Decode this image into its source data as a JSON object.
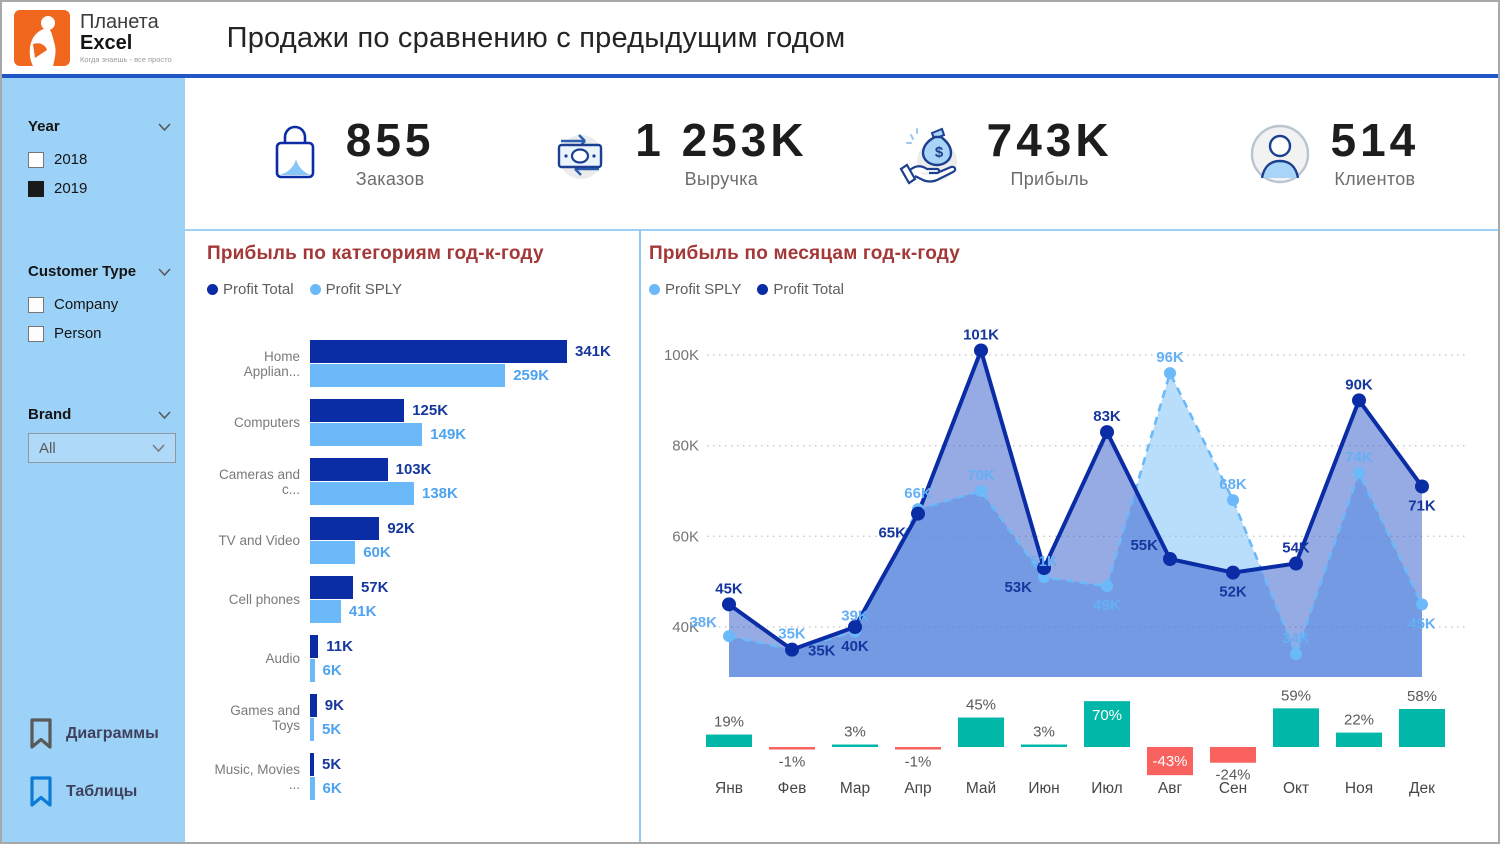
{
  "header": {
    "logo": {
      "brand_line1": "Планета",
      "brand_line2": "Excel",
      "tagline": "Когда знаешь - все просто"
    },
    "title": "Продажи по сравнению с предыдущим годом"
  },
  "sidebar": {
    "year": {
      "label": "Year",
      "options": [
        {
          "label": "2018",
          "checked": false
        },
        {
          "label": "2019",
          "checked": true
        }
      ]
    },
    "customer_type": {
      "label": "Customer Type",
      "options": [
        {
          "label": "Company",
          "checked": false
        },
        {
          "label": "Person",
          "checked": false
        }
      ]
    },
    "brand": {
      "label": "Brand",
      "selected": "All"
    },
    "nav": [
      {
        "label": "Диаграммы",
        "icon": "bookmark-icon",
        "color": "#595959"
      },
      {
        "label": "Таблицы",
        "icon": "bookmark-icon",
        "color": "#0b7bd8"
      }
    ]
  },
  "kpis": [
    {
      "value": "855",
      "label": "Заказов",
      "icon": "shopping-bag-icon"
    },
    {
      "value": "1 253K",
      "label": "Выручка",
      "icon": "money-transfer-icon"
    },
    {
      "value": "743K",
      "label": "Прибыль",
      "icon": "money-bag-icon"
    },
    {
      "value": "514",
      "label": "Клиентов",
      "icon": "customer-icon"
    }
  ],
  "colors": {
    "profit_total": "#0a2ca4",
    "profit_sply": "#6cb9f9",
    "total_fill": "#2e55c8",
    "sply_fill": "#7dc3fa",
    "positive": "#00b7a8",
    "negative": "#f9625e",
    "title_maroon": "#a43737",
    "sidebar_blue": "#9dd2f8",
    "divider_blue": "#8fc7f3",
    "header_rule": "#2156c6",
    "axis_gray": "#757575"
  },
  "chart_data": [
    {
      "type": "bar",
      "orientation": "horizontal",
      "title": "Прибыль по категориям год-к-году",
      "unit": "K",
      "legend_position": "top",
      "categories": [
        "Home Applian...",
        "Computers",
        "Cameras and c...",
        "TV and Video",
        "Cell phones",
        "Audio",
        "Games and Toys",
        "Music, Movies ..."
      ],
      "xmax": 341,
      "series": [
        {
          "name": "Profit Total",
          "color": "#0a2ca4",
          "label_color": "#16379e",
          "values": [
            341,
            125,
            103,
            92,
            57,
            11,
            9,
            5
          ]
        },
        {
          "name": "Profit SPLY",
          "color": "#6cb9f9",
          "label_color": "#4da3f0",
          "values": [
            259,
            149,
            138,
            60,
            41,
            6,
            5,
            6
          ]
        }
      ]
    },
    {
      "type": "line",
      "title": "Прибыль по месяцам год-к-году",
      "unit": "K",
      "legend_position": "top",
      "categories": [
        "Янв",
        "Фев",
        "Мар",
        "Апр",
        "Май",
        "Июн",
        "Июл",
        "Авг",
        "Сен",
        "Окт",
        "Ноя",
        "Дек"
      ],
      "y_ticks": [
        40,
        60,
        80,
        100
      ],
      "y_tick_labels": [
        "40K",
        "60K",
        "80K",
        "100K"
      ],
      "ylim": [
        40,
        100
      ],
      "grid": true,
      "series": [
        {
          "name": "Profit SPLY",
          "color": "#6cb9f9",
          "style": "dashed",
          "area": true,
          "values": [
            38,
            35,
            39,
            66,
            70,
            51,
            49,
            96,
            68,
            34,
            74,
            45
          ],
          "label_pos": [
            "above-left",
            "above",
            "above",
            "above",
            "above",
            "above",
            "below",
            "above",
            "above",
            "above",
            "above",
            "below"
          ]
        },
        {
          "name": "Profit Total",
          "color": "#0a2ca4",
          "style": "solid",
          "area": true,
          "values": [
            45,
            35,
            40,
            65,
            101,
            53,
            83,
            55,
            52,
            54,
            90,
            71
          ],
          "label_pos": [
            "above",
            "right",
            "below",
            "below-left",
            "above",
            "below-left",
            "above",
            "above-left",
            "below",
            "above",
            "above",
            "below"
          ]
        }
      ],
      "growth_bars": {
        "name": "YoY %",
        "values": [
          19,
          -1,
          3,
          -1,
          45,
          3,
          70,
          -43,
          -24,
          59,
          22,
          58
        ],
        "positive_color": "#00b7a8",
        "negative_color": "#f9625e",
        "label_inside": [
          false,
          false,
          false,
          false,
          false,
          false,
          true,
          true,
          false,
          false,
          false,
          false
        ]
      }
    }
  ]
}
